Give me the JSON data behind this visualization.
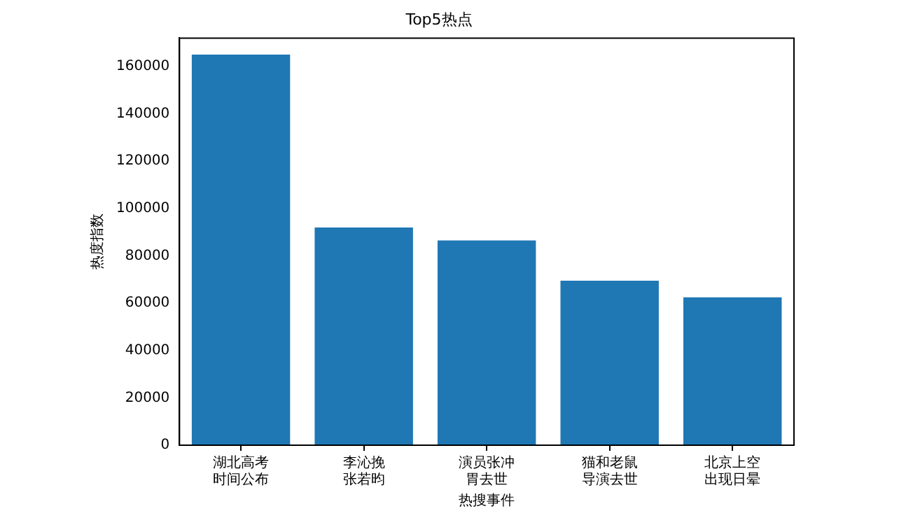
{
  "chart_data": {
    "type": "bar",
    "title": "Top5热点",
    "xlabel": "热搜事件",
    "ylabel": "热度指数",
    "categories": [
      "湖北高考时间公布",
      "李沁挽张若昀",
      "演员张冲胃去世",
      "猫和老鼠导演去世",
      "北京上空出现日晕"
    ],
    "values": [
      165000,
      92000,
      86500,
      69500,
      62500
    ],
    "color": "#1f77b4",
    "ylim": [
      0,
      172000
    ],
    "yticks": [
      0,
      20000,
      40000,
      60000,
      80000,
      100000,
      120000,
      140000,
      160000
    ],
    "grid": false,
    "legend": false
  }
}
